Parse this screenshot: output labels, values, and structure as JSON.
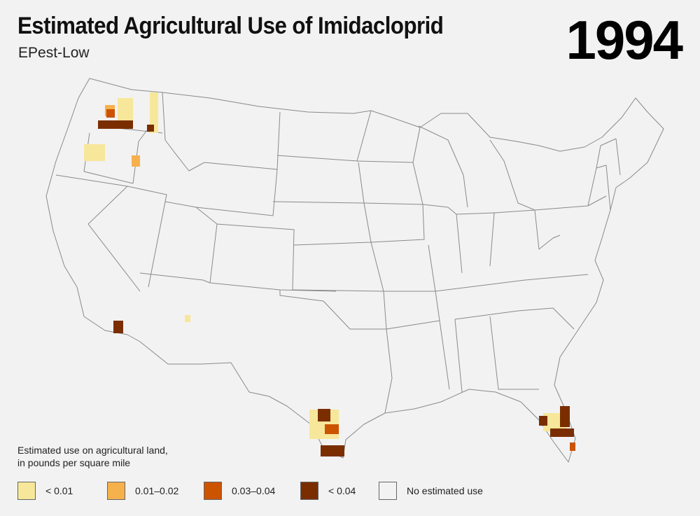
{
  "header": {
    "title": "Estimated Agricultural Use of Imidacloprid",
    "subtitle": "EPest-Low",
    "year": "1994"
  },
  "map": {
    "outline_color": "#8a8a8a",
    "land_color": "#f2f2f2"
  },
  "legend": {
    "title_line1": "Estimated use on agricultural land,",
    "title_line2": "in pounds per square mile",
    "items": [
      {
        "label": "< 0.01",
        "color": "#f7e79a"
      },
      {
        "label": "0.01–0.02",
        "color": "#f6b04c"
      },
      {
        "label": "0.03–0.04",
        "color": "#cc5300"
      },
      {
        "label": "< 0.04",
        "color": "#7a2e00"
      },
      {
        "label": "No estimated use",
        "color": "#f2f2f2"
      }
    ]
  }
}
